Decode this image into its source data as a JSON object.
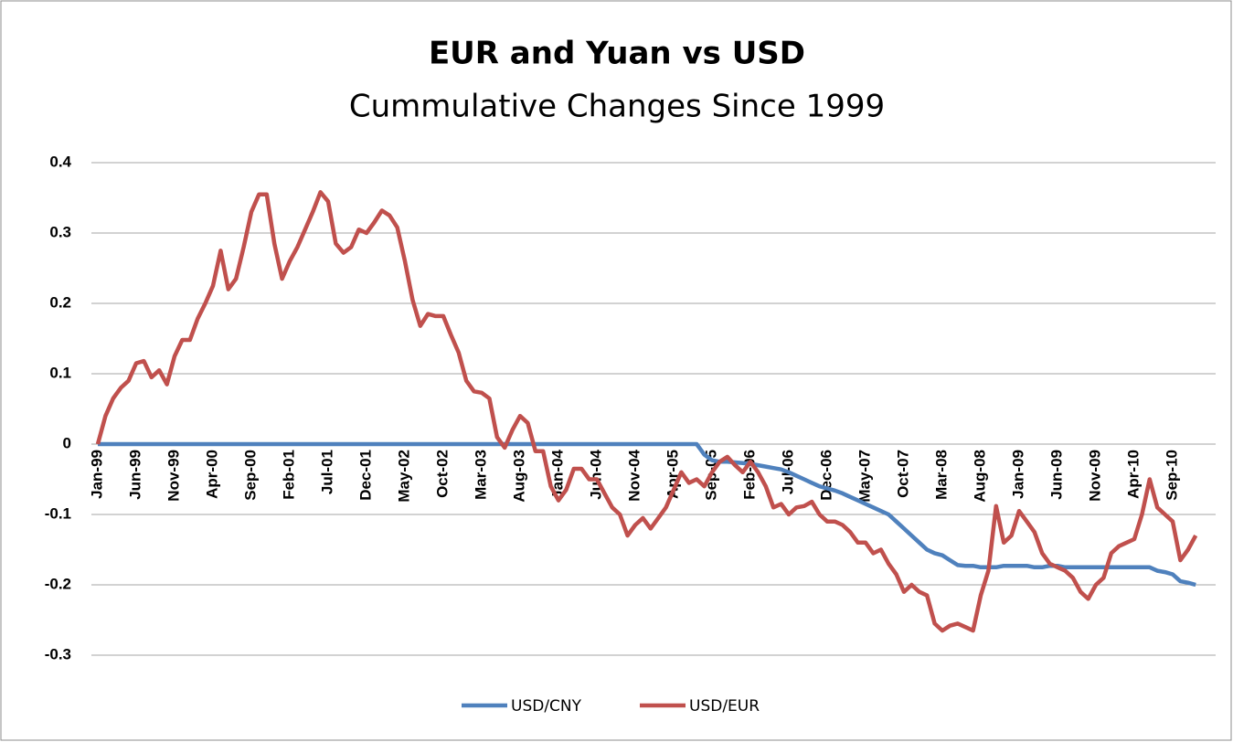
{
  "chart_data": {
    "type": "line",
    "title": "EUR and Yuan vs USD",
    "subtitle": "Cummulative Changes Since 1999",
    "categories": [
      "Jan-99",
      null,
      null,
      null,
      null,
      "Jun-99",
      null,
      null,
      null,
      null,
      "Nov-99",
      null,
      null,
      null,
      null,
      "Apr-00",
      null,
      null,
      null,
      null,
      "Sep-00",
      null,
      null,
      null,
      null,
      "Feb-01",
      null,
      null,
      null,
      null,
      "Jul-01",
      null,
      null,
      null,
      null,
      "Dec-01",
      null,
      null,
      null,
      null,
      "May-02",
      null,
      null,
      null,
      null,
      "Oct-02",
      null,
      null,
      null,
      null,
      "Mar-03",
      null,
      null,
      null,
      null,
      "Aug-03",
      null,
      null,
      null,
      null,
      "Jan-04",
      null,
      null,
      null,
      null,
      "Jun-04",
      null,
      null,
      null,
      null,
      "Nov-04",
      null,
      null,
      null,
      null,
      "Apr-05",
      null,
      null,
      null,
      null,
      "Sep-05",
      null,
      null,
      null,
      null,
      "Feb-06",
      null,
      null,
      null,
      null,
      "Jul-06",
      null,
      null,
      null,
      null,
      "Dec-06",
      null,
      null,
      null,
      null,
      "May-07",
      null,
      null,
      null,
      null,
      "Oct-07",
      null,
      null,
      null,
      null,
      "Mar-08",
      null,
      null,
      null,
      null,
      "Aug-08",
      null,
      null,
      null,
      null,
      "Jan-09",
      null,
      null,
      null,
      null,
      "Jun-09",
      null,
      null,
      null,
      null,
      "Nov-09",
      null,
      null,
      null,
      null,
      "Apr-10",
      null,
      null,
      null,
      null,
      "Sep-10",
      null,
      null,
      null
    ],
    "series": [
      {
        "name": "USD/CNY",
        "color": "#4f81bd",
        "values": [
          0,
          0,
          0,
          0,
          0,
          0,
          0,
          0,
          0,
          0,
          0,
          0,
          0,
          0,
          0,
          0,
          0,
          0,
          0,
          0,
          0,
          0,
          0,
          0,
          0,
          0,
          0,
          0,
          0,
          0,
          0,
          0,
          0,
          0,
          0,
          0,
          0,
          0,
          0,
          0,
          0,
          0,
          0,
          0,
          0,
          0,
          0,
          0,
          0,
          0,
          0,
          0,
          0,
          0,
          0,
          0,
          0,
          0,
          0,
          0,
          0,
          0,
          0,
          0,
          0,
          0,
          0,
          0,
          0,
          0,
          0,
          0,
          0,
          0,
          0,
          0,
          0,
          0,
          0,
          -0.015,
          -0.023,
          -0.025,
          -0.025,
          -0.026,
          -0.027,
          -0.028,
          -0.03,
          -0.032,
          -0.034,
          -0.036,
          -0.04,
          -0.045,
          -0.05,
          -0.055,
          -0.06,
          -0.063,
          -0.066,
          -0.07,
          -0.075,
          -0.08,
          -0.085,
          -0.09,
          -0.095,
          -0.1,
          -0.11,
          -0.12,
          -0.13,
          -0.14,
          -0.15,
          -0.155,
          -0.158,
          -0.165,
          -0.172,
          -0.173,
          -0.173,
          -0.175,
          -0.175,
          -0.175,
          -0.173,
          -0.173,
          -0.173,
          -0.173,
          -0.175,
          -0.175,
          -0.173,
          -0.173,
          -0.175,
          -0.175,
          -0.175,
          -0.175,
          -0.175,
          -0.175,
          -0.175,
          -0.175,
          -0.175,
          -0.175,
          -0.175,
          -0.175,
          -0.18,
          -0.182,
          -0.185,
          -0.195,
          -0.197,
          -0.2
        ]
      },
      {
        "name": "USD/EUR",
        "color": "#c0504d",
        "values": [
          0,
          0.04,
          0.065,
          0.08,
          0.09,
          0.115,
          0.118,
          0.095,
          0.105,
          0.085,
          0.125,
          0.148,
          0.148,
          0.178,
          0.2,
          0.225,
          0.275,
          0.22,
          0.235,
          0.28,
          0.33,
          0.355,
          0.355,
          0.285,
          0.235,
          0.26,
          0.28,
          0.305,
          0.33,
          0.358,
          0.345,
          0.285,
          0.272,
          0.28,
          0.305,
          0.3,
          0.315,
          0.332,
          0.325,
          0.308,
          0.26,
          0.205,
          0.168,
          0.185,
          0.182,
          0.182,
          0.155,
          0.13,
          0.09,
          0.075,
          0.073,
          0.065,
          0.01,
          -0.005,
          0.02,
          0.04,
          0.03,
          -0.01,
          -0.01,
          -0.06,
          -0.08,
          -0.065,
          -0.035,
          -0.035,
          -0.05,
          -0.05,
          -0.07,
          -0.09,
          -0.1,
          -0.13,
          -0.115,
          -0.105,
          -0.12,
          -0.105,
          -0.09,
          -0.065,
          -0.04,
          -0.055,
          -0.05,
          -0.06,
          -0.04,
          -0.025,
          -0.018,
          -0.03,
          -0.04,
          -0.025,
          -0.04,
          -0.06,
          -0.09,
          -0.085,
          -0.1,
          -0.09,
          -0.088,
          -0.082,
          -0.1,
          -0.11,
          -0.11,
          -0.115,
          -0.125,
          -0.14,
          -0.14,
          -0.155,
          -0.15,
          -0.17,
          -0.185,
          -0.21,
          -0.2,
          -0.21,
          -0.215,
          -0.255,
          -0.265,
          -0.258,
          -0.255,
          -0.26,
          -0.265,
          -0.215,
          -0.18,
          -0.088,
          -0.14,
          -0.13,
          -0.095,
          -0.11,
          -0.125,
          -0.155,
          -0.17,
          -0.175,
          -0.18,
          -0.19,
          -0.21,
          -0.22,
          -0.2,
          -0.19,
          -0.155,
          -0.145,
          -0.14,
          -0.135,
          -0.1,
          -0.05,
          -0.09,
          -0.1,
          -0.11,
          -0.165,
          -0.15,
          -0.13
        ]
      }
    ],
    "ylim": [
      -0.3,
      0.4
    ],
    "yticks": [
      0.4,
      0.3,
      0.2,
      0.1,
      0,
      -0.1,
      -0.2,
      -0.3
    ],
    "grid": true,
    "legend": "bottom"
  }
}
